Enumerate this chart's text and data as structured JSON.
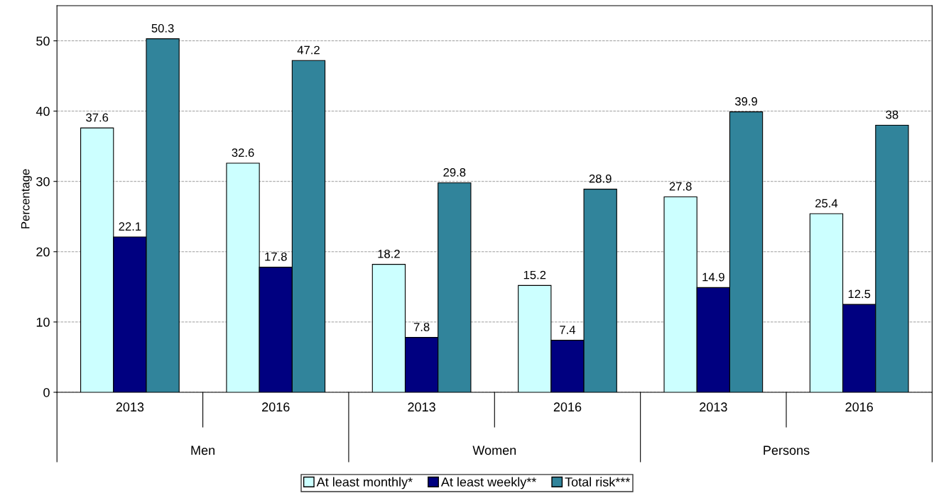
{
  "chart_data": {
    "type": "bar",
    "ylabel": "Percentage",
    "categories": [
      "2013",
      "2016",
      "2013",
      "2016",
      "2013",
      "2016"
    ],
    "annotations": [
      "Men",
      "Women",
      "Persons"
    ],
    "series": [
      {
        "name": "At least monthly*",
        "color": "#ccffff",
        "values": [
          37.6,
          32.6,
          18.2,
          15.2,
          27.8,
          25.4
        ]
      },
      {
        "name": "At least weekly**",
        "color": "#000080",
        "values": [
          22.1,
          17.8,
          7.8,
          7.4,
          14.9,
          12.5
        ]
      },
      {
        "name": "Total risk***",
        "color": "#31849b",
        "values": [
          50.3,
          47.2,
          29.8,
          28.9,
          39.9,
          38
        ]
      }
    ],
    "ylim": [
      0,
      55
    ],
    "yticks": [
      0,
      10,
      20,
      30,
      40,
      50
    ],
    "grid": "y",
    "legend": "bottom",
    "data_labels": true
  }
}
